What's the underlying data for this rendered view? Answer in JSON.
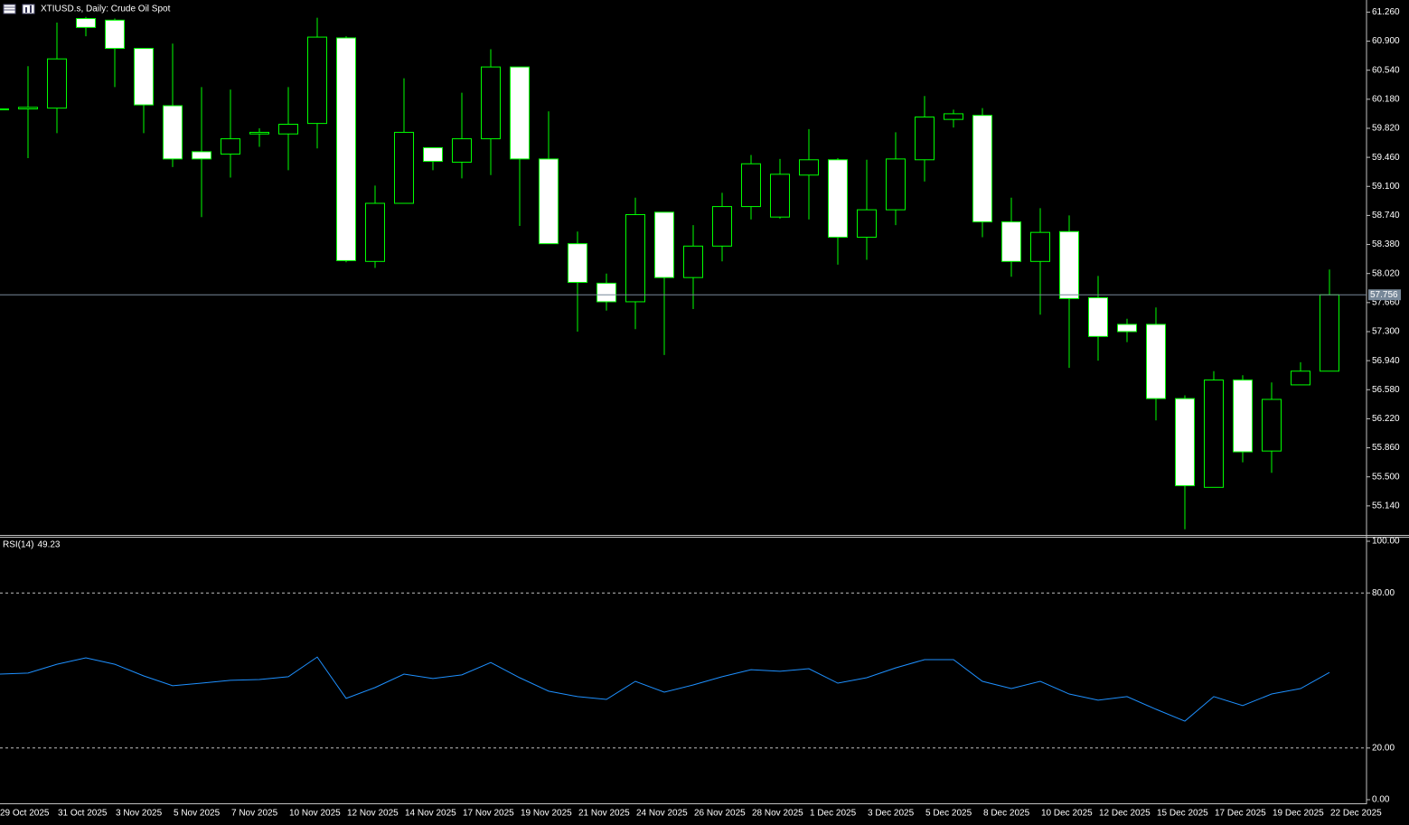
{
  "chart_data": [
    {
      "type": "candlestick",
      "title": "XTIUSD.s, Daily:  Crude Oil Spot",
      "categories": [
        "29 Oct 2025",
        null,
        "31 Oct 2025",
        null,
        "3 Nov 2025",
        null,
        "5 Nov 2025",
        null,
        "7 Nov 2025",
        null,
        "10 Nov 2025",
        null,
        "12 Nov 2025",
        null,
        "14 Nov 2025",
        null,
        "17 Nov 2025",
        null,
        "19 Nov 2025",
        null,
        "21 Nov 2025",
        null,
        "24 Nov 2025",
        null,
        "26 Nov 2025",
        null,
        "28 Nov 2025",
        null,
        "1 Dec 2025",
        null,
        "3 Dec 2025",
        null,
        "5 Dec 2025",
        null,
        "8 Dec 2025",
        null,
        "10 Dec 2025",
        null,
        "12 Dec 2025",
        null,
        "15 Dec 2025",
        null,
        "17 Dec 2025",
        null,
        "19 Dec 2025",
        null,
        "22 Dec 2025"
      ],
      "open": [
        60.06,
        60.06,
        60.07,
        61.18,
        61.16,
        60.81,
        60.1,
        59.53,
        59.5,
        59.75,
        59.75,
        59.88,
        60.94,
        58.17,
        58.89,
        59.58,
        59.4,
        59.69,
        60.58,
        59.44,
        58.39,
        57.9,
        57.67,
        58.78,
        57.97,
        58.36,
        58.85,
        58.72,
        59.24,
        59.43,
        58.47,
        58.81,
        59.43,
        59.93,
        59.98,
        58.66,
        58.17,
        58.54,
        57.72,
        57.39,
        57.39,
        56.47,
        55.37,
        56.7,
        55.82,
        56.64,
        56.81
      ],
      "high": [
        60.06,
        60.59,
        61.13,
        61.2,
        61.18,
        60.81,
        60.87,
        60.33,
        60.3,
        59.82,
        60.33,
        61.19,
        60.96,
        59.11,
        60.44,
        59.58,
        60.26,
        60.8,
        60.58,
        60.03,
        58.54,
        58.02,
        58.96,
        58.78,
        58.62,
        59.02,
        59.49,
        59.44,
        59.81,
        59.45,
        59.43,
        59.77,
        60.22,
        60.05,
        60.07,
        58.96,
        58.83,
        58.74,
        57.99,
        57.46,
        57.6,
        56.51,
        56.81,
        56.76,
        56.67,
        56.92,
        58.07
      ],
      "low": [
        60.06,
        59.45,
        59.76,
        60.96,
        60.33,
        59.76,
        59.34,
        58.72,
        59.21,
        59.59,
        59.3,
        59.57,
        58.16,
        58.09,
        58.89,
        59.3,
        59.2,
        59.24,
        58.61,
        58.39,
        57.3,
        57.56,
        57.33,
        57.01,
        57.58,
        58.17,
        58.69,
        58.7,
        58.69,
        58.13,
        58.19,
        58.62,
        59.16,
        59.83,
        58.47,
        57.98,
        57.51,
        56.85,
        56.94,
        57.17,
        56.2,
        54.85,
        55.37,
        55.68,
        55.55,
        56.64,
        56.81
      ],
      "close": [
        60.06,
        60.08,
        60.68,
        61.07,
        60.81,
        60.11,
        59.44,
        59.44,
        59.69,
        59.77,
        59.87,
        60.95,
        58.18,
        58.89,
        59.77,
        59.41,
        59.69,
        60.58,
        59.44,
        58.39,
        57.91,
        57.67,
        58.75,
        57.97,
        58.36,
        58.85,
        59.38,
        59.25,
        59.43,
        58.47,
        58.81,
        59.44,
        59.96,
        60.0,
        58.66,
        58.17,
        58.53,
        57.71,
        57.24,
        57.3,
        56.47,
        55.39,
        56.7,
        55.81,
        56.46,
        56.81,
        57.756
      ],
      "up_color": "#000000",
      "down_color": "#ffffff",
      "wick_color": "#00ff00",
      "price_line_color": "#778899",
      "ylim": [
        54.78,
        61.41
      ],
      "yticks": [
        {
          "value": 61.26,
          "label": "61.260"
        },
        {
          "value": 60.9,
          "label": "60.900"
        },
        {
          "value": 60.54,
          "label": "60.540"
        },
        {
          "value": 60.18,
          "label": "60.180"
        },
        {
          "value": 59.82,
          "label": "59.820"
        },
        {
          "value": 59.46,
          "label": "59.460"
        },
        {
          "value": 59.1,
          "label": "59.100"
        },
        {
          "value": 58.74,
          "label": "58.740"
        },
        {
          "value": 58.38,
          "label": "58.380"
        },
        {
          "value": 58.02,
          "label": "58.020"
        },
        {
          "value": 57.66,
          "label": "57.660"
        },
        {
          "value": 57.3,
          "label": "57.300"
        },
        {
          "value": 56.94,
          "label": "56.940"
        },
        {
          "value": 56.58,
          "label": "56.580"
        },
        {
          "value": 56.22,
          "label": "56.220"
        },
        {
          "value": 55.86,
          "label": "55.860"
        },
        {
          "value": 55.5,
          "label": "55.500"
        },
        {
          "value": 55.14,
          "label": "55.140"
        }
      ]
    },
    {
      "type": "line",
      "series": [
        {
          "name": "RSI(14)",
          "color": "#1e90ff",
          "values": [
            48.6,
            49.0,
            52.4,
            54.9,
            52.4,
            47.9,
            44.1,
            45.1,
            46.2,
            46.5,
            47.6,
            55.2,
            39.2,
            43.4,
            48.6,
            46.9,
            48.3,
            53.1,
            47.2,
            42.0,
            39.9,
            38.8,
            45.8,
            41.6,
            44.4,
            47.6,
            50.3,
            49.7,
            50.7,
            45.1,
            47.2,
            51.0,
            54.2,
            54.2,
            45.8,
            43.0,
            45.8,
            40.9,
            38.5,
            39.9,
            35.0,
            30.4,
            39.9,
            36.4,
            40.9,
            43.0,
            49.23
          ]
        }
      ],
      "ylim": [
        -1.05,
        101.4
      ],
      "yticks": [
        {
          "value": 100,
          "label": "100.00"
        },
        {
          "value": 80,
          "label": "80.00"
        },
        {
          "value": 20,
          "label": "20.00"
        },
        {
          "value": 0,
          "label": "0.00"
        }
      ]
    }
  ]
}
